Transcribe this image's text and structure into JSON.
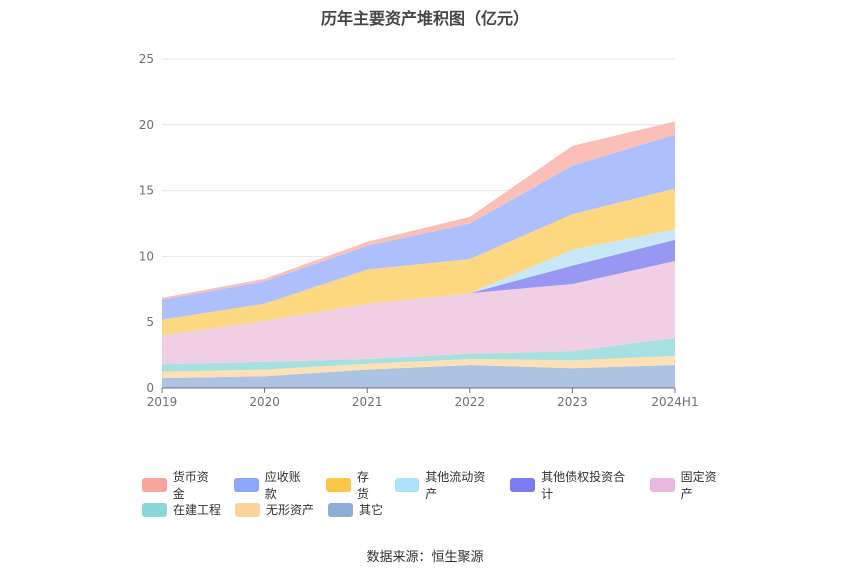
{
  "chart_data": {
    "type": "area",
    "stacked": true,
    "title": "历年主要资产堆积图（亿元）",
    "categories": [
      "2019",
      "2020",
      "2021",
      "2022",
      "2023",
      "2024H1"
    ],
    "yticks": [
      "0",
      "5",
      "10",
      "15",
      "20",
      "25"
    ],
    "ylim": [
      0,
      25
    ],
    "grid": true,
    "legend_position": "bottom",
    "series": [
      {
        "name": "其它",
        "color": "#adc3e4",
        "values": [
          0.75,
          0.9,
          1.4,
          1.75,
          1.5,
          1.75
        ]
      },
      {
        "name": "无形资产",
        "color": "#fde1b5",
        "values": [
          0.5,
          0.5,
          0.45,
          0.45,
          0.6,
          0.7
        ]
      },
      {
        "name": "在建工程",
        "color": "#a6e0e1",
        "values": [
          0.55,
          0.6,
          0.35,
          0.4,
          0.7,
          1.35
        ]
      },
      {
        "name": "固定资产",
        "color": "#f0cfe4",
        "values": [
          2.2,
          3.1,
          4.2,
          4.6,
          5.1,
          5.85
        ]
      },
      {
        "name": "其他债权投资合计",
        "color": "#9897f2",
        "values": [
          0,
          0,
          0,
          0,
          1.4,
          1.6
        ]
      },
      {
        "name": "其他流动资产",
        "color": "#c6e8f8",
        "values": [
          0,
          0,
          0,
          0,
          1.2,
          0.8
        ]
      },
      {
        "name": "存货",
        "color": "#fdd881",
        "values": [
          1.2,
          1.3,
          2.6,
          2.6,
          2.7,
          3.1
        ]
      },
      {
        "name": "应收账款",
        "color": "#adc0fd",
        "values": [
          1.5,
          1.7,
          1.8,
          2.7,
          3.7,
          4.1
        ]
      },
      {
        "name": "货币资金",
        "color": "#fbbfb7",
        "values": [
          0.15,
          0.2,
          0.3,
          0.5,
          1.5,
          1.0
        ]
      }
    ]
  },
  "legend": {
    "rows": [
      [
        {
          "label": "货币资金",
          "color": "#f9a49a"
        },
        {
          "label": "应收账款",
          "color": "#8aa8fc"
        },
        {
          "label": "存货",
          "color": "#fcc64b"
        },
        {
          "label": "其他流动资产",
          "color": "#ace2fa"
        },
        {
          "label": "其他债权投资合计",
          "color": "#7d7bf1"
        },
        {
          "label": "固定资产",
          "color": "#eab8dc"
        }
      ],
      [
        {
          "label": "在建工程",
          "color": "#88d8da"
        },
        {
          "label": "无形资产",
          "color": "#fdd39a"
        },
        {
          "label": "其它",
          "color": "#8eacd8"
        }
      ]
    ]
  },
  "source": "数据来源：恒生聚源"
}
